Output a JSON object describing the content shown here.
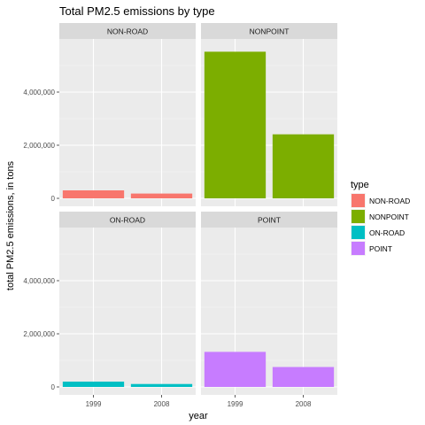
{
  "chart_data": {
    "type": "bar",
    "title": "Total PM2.5 emissions by type",
    "xlabel": "year",
    "ylabel": "total PM2.5 emissions, in tons",
    "categories": [
      "1999",
      "2008"
    ],
    "ylim": [
      -300000,
      6000000
    ],
    "yticks": [
      0,
      2000000,
      4000000
    ],
    "ytick_labels": [
      "0",
      "2,000,000",
      "4,000,000"
    ],
    "grid": true,
    "legend": {
      "title": "type",
      "position": "right"
    },
    "series": [
      {
        "name": "NON-ROAD",
        "color": "#F8766D",
        "values": [
          300000,
          180000
        ]
      },
      {
        "name": "NONPOINT",
        "color": "#7CAE00",
        "values": [
          5520000,
          2410000
        ]
      },
      {
        "name": "ON-ROAD",
        "color": "#00BFC4",
        "values": [
          200000,
          110000
        ]
      },
      {
        "name": "POINT",
        "color": "#C77CFF",
        "values": [
          1320000,
          750000
        ]
      }
    ]
  }
}
